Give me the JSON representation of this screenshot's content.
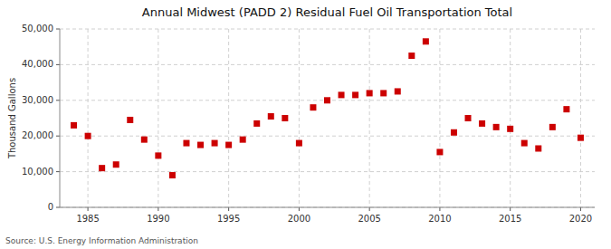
{
  "chart_data": {
    "type": "scatter",
    "title": "Annual Midwest (PADD 2) Residual Fuel Oil Transportation Total",
    "ylabel": "Thousand Gallons",
    "source": "Source: U.S. Energy Information Administration",
    "x": [
      1984,
      1985,
      1986,
      1987,
      1988,
      1989,
      1990,
      1991,
      1992,
      1993,
      1994,
      1995,
      1996,
      1997,
      1998,
      1999,
      2000,
      2001,
      2002,
      2003,
      2004,
      2005,
      2006,
      2007,
      2008,
      2009,
      2010,
      2011,
      2012,
      2013,
      2014,
      2015,
      2016,
      2017,
      2018,
      2019,
      2020
    ],
    "values": [
      23000,
      20000,
      11000,
      12000,
      24500,
      19000,
      14500,
      9000,
      18000,
      17500,
      18000,
      17500,
      19000,
      23500,
      25500,
      25000,
      18000,
      28000,
      30000,
      31500,
      31500,
      32000,
      32000,
      32500,
      42500,
      46500,
      15500,
      21000,
      25000,
      23500,
      22500,
      22000,
      18000,
      16500,
      22500,
      27500,
      19500
    ],
    "color": "#cc0000",
    "marker": "square",
    "xlim": [
      1983,
      2021
    ],
    "ylim": [
      0,
      50000
    ],
    "xticks": [
      1985,
      1990,
      1995,
      2000,
      2005,
      2010,
      2015,
      2020
    ],
    "yticks": [
      0,
      {
        "value": 10000,
        "label": "10,000"
      },
      {
        "value": 20000,
        "label": "20,000"
      },
      {
        "value": 30000,
        "label": "30,000"
      },
      {
        "value": 40000,
        "label": "40,000"
      },
      {
        "value": 50000,
        "label": "50,000"
      }
    ],
    "grid": true
  }
}
